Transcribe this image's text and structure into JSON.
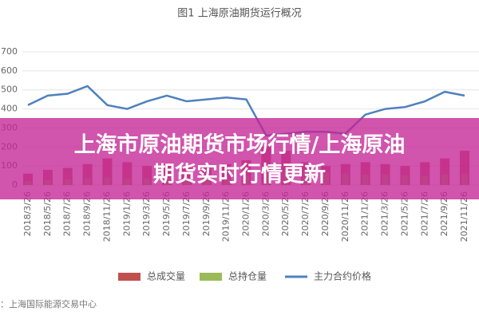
{
  "chart_data": {
    "type": "bar_line",
    "title": "图1 上海原油期货运行概况",
    "categories": [
      "2018/3/26",
      "2018/5/26",
      "2018/7/26",
      "2018/9/26",
      "2018/11/26",
      "2019/1/26",
      "2019/3/26",
      "2019/5/26",
      "2019/7/26",
      "2019/9/26",
      "2019/11/26",
      "2020/1/26",
      "2020/3/26",
      "2020/5/26",
      "2020/7/26",
      "2020/9/26",
      "2020/11/26",
      "2021/1/26",
      "2021/3/26",
      "2021/5/26",
      "2021/7/26",
      "2021/9/26",
      "2021/11/26"
    ],
    "series": [
      {
        "name": "总成交量",
        "type": "bar",
        "color": "#c0504d",
        "values": [
          60,
          80,
          90,
          110,
          140,
          120,
          100,
          110,
          90,
          100,
          110,
          130,
          200,
          180,
          120,
          100,
          110,
          120,
          110,
          100,
          120,
          140,
          180
        ]
      },
      {
        "name": "总持仓量",
        "type": "bar",
        "color": "#9bbb59",
        "values": [
          20,
          25,
          30,
          35,
          40,
          35,
          35,
          40,
          40,
          45,
          45,
          50,
          60,
          70,
          70,
          65,
          60,
          55,
          55,
          50,
          50,
          55,
          60
        ]
      },
      {
        "name": "主力合约价格",
        "type": "line",
        "color": "#4f81bd",
        "values": [
          420,
          470,
          480,
          520,
          420,
          400,
          440,
          470,
          440,
          450,
          460,
          450,
          260,
          270,
          280,
          280,
          270,
          370,
          400,
          410,
          440,
          490,
          470
        ]
      }
    ],
    "ylim": [
      0,
      700
    ],
    "yticks": [
      0,
      100,
      200,
      300,
      400,
      500,
      600,
      700
    ],
    "grid": true,
    "legend": "bottom",
    "source": "来源：上海国际能源交易中心"
  },
  "banner": {
    "lines": [
      "上海市原油期货市场行情/上海原油",
      "期货实时行情更新"
    ]
  }
}
